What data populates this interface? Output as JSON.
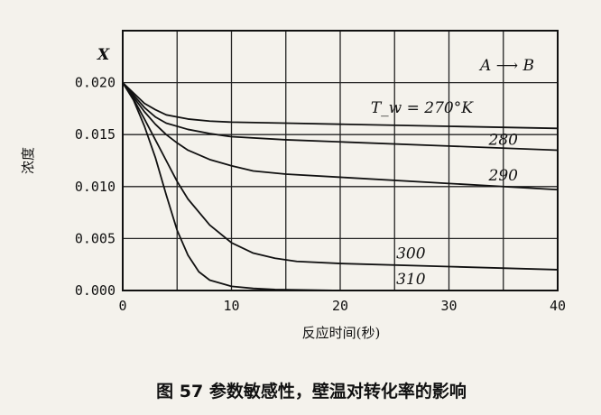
{
  "chart_data": {
    "type": "line",
    "title": "",
    "caption": "图 57 参数敏感性，壁温对转化率的影响",
    "xlabel": "反应时间(秒)",
    "ylabel": "浓度",
    "y_symbol": "X",
    "reaction_label": "A ⟶ B",
    "temp_label_prefix": "T_w = ",
    "xlim": [
      0,
      40
    ],
    "ylim": [
      0,
      0.025
    ],
    "xticks": [
      0,
      10,
      20,
      30,
      40
    ],
    "yticks": [
      0.0,
      0.005,
      0.01,
      0.015,
      0.02
    ],
    "ytick_labels": [
      "0.000",
      "0.005",
      "0.010",
      "0.015",
      "0.020"
    ],
    "grid": true,
    "series": [
      {
        "name": "270°K",
        "x": [
          0,
          1,
          2,
          3,
          4,
          6,
          8,
          10,
          15,
          20,
          30,
          40
        ],
        "y": [
          0.02,
          0.019,
          0.018,
          0.0174,
          0.0169,
          0.0165,
          0.0163,
          0.0162,
          0.0161,
          0.016,
          0.0158,
          0.0156
        ]
      },
      {
        "name": "280",
        "x": [
          0,
          1,
          2,
          3,
          4,
          6,
          8,
          10,
          15,
          20,
          30,
          40
        ],
        "y": [
          0.02,
          0.0188,
          0.0176,
          0.0167,
          0.0161,
          0.0155,
          0.0151,
          0.0148,
          0.0145,
          0.0143,
          0.0139,
          0.0135
        ]
      },
      {
        "name": "290",
        "x": [
          0,
          1,
          2,
          3,
          4,
          5,
          6,
          8,
          10,
          12,
          15,
          20,
          30,
          40
        ],
        "y": [
          0.02,
          0.0186,
          0.0172,
          0.016,
          0.015,
          0.0142,
          0.0135,
          0.0126,
          0.012,
          0.0115,
          0.0112,
          0.0109,
          0.0103,
          0.0097
        ]
      },
      {
        "name": "300",
        "x": [
          0,
          1,
          2,
          3,
          4,
          5,
          6,
          8,
          10,
          12,
          14,
          16,
          20,
          30,
          40
        ],
        "y": [
          0.02,
          0.0184,
          0.0165,
          0.0145,
          0.0125,
          0.0105,
          0.0088,
          0.0063,
          0.0046,
          0.0036,
          0.0031,
          0.0028,
          0.0026,
          0.0023,
          0.002
        ]
      },
      {
        "name": "310",
        "x": [
          0,
          1,
          2,
          3,
          4,
          5,
          6,
          7,
          8,
          10,
          12,
          14,
          20,
          30,
          40
        ],
        "y": [
          0.02,
          0.0183,
          0.0158,
          0.0128,
          0.0092,
          0.0058,
          0.0034,
          0.0018,
          0.001,
          0.0004,
          0.0002,
          0.0001,
          0.0,
          0.0,
          0.0
        ]
      }
    ]
  }
}
